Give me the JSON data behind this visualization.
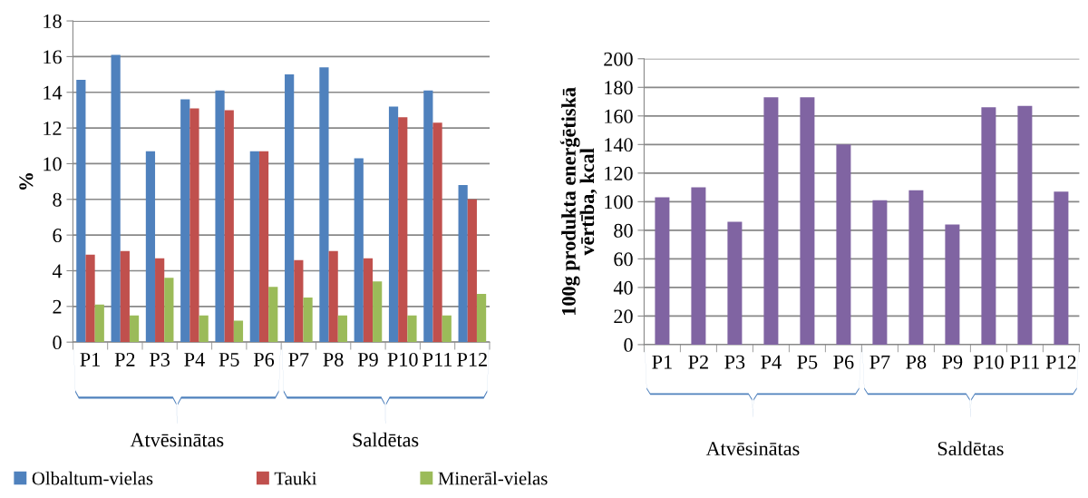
{
  "chart_data": [
    {
      "type": "bar",
      "ylabel": "%",
      "categories": [
        "P1",
        "P2",
        "P3",
        "P4",
        "P5",
        "P6",
        "P7",
        "P8",
        "P9",
        "P10",
        "P11",
        "P12"
      ],
      "series": [
        {
          "name": "Olbaltum-vielas",
          "color": "#4f81bd",
          "values": [
            14.7,
            16.1,
            10.7,
            13.6,
            14.1,
            10.7,
            15.0,
            15.4,
            10.3,
            13.2,
            14.1,
            8.8
          ]
        },
        {
          "name": "Tauki",
          "color": "#c0504d",
          "values": [
            4.9,
            5.1,
            4.7,
            13.1,
            13.0,
            10.7,
            4.6,
            5.1,
            4.7,
            12.6,
            12.3,
            8.0
          ]
        },
        {
          "name": "Minerāl-vielas",
          "color": "#9bbb59",
          "values": [
            2.1,
            1.5,
            3.6,
            1.5,
            1.2,
            3.1,
            2.5,
            1.5,
            3.4,
            1.5,
            1.5,
            2.7
          ]
        }
      ],
      "ylim": [
        0,
        18
      ],
      "yticks": [
        0,
        2,
        4,
        6,
        8,
        10,
        12,
        14,
        16,
        18
      ],
      "grid": "y",
      "legend": "bottom",
      "annotations": [
        "Atvēsinātas",
        "Saldētas"
      ]
    },
    {
      "type": "bar",
      "ylabel": "100g produkta enerģētiskā\nvērtība, kcal",
      "categories": [
        "P1",
        "P2",
        "P3",
        "P4",
        "P5",
        "P6",
        "P7",
        "P8",
        "P9",
        "P10",
        "P11",
        "P12"
      ],
      "series": [
        {
          "color": "#8064a2",
          "values": [
            103,
            110,
            86,
            173,
            173,
            140,
            101,
            108,
            84,
            166,
            167,
            107
          ]
        }
      ],
      "ylim": [
        0,
        200
      ],
      "yticks": [
        0,
        20,
        40,
        60,
        80,
        100,
        120,
        140,
        160,
        180,
        200
      ],
      "grid": "y",
      "annotations": [
        "Atvēsinātas",
        "Saldētas"
      ]
    }
  ]
}
